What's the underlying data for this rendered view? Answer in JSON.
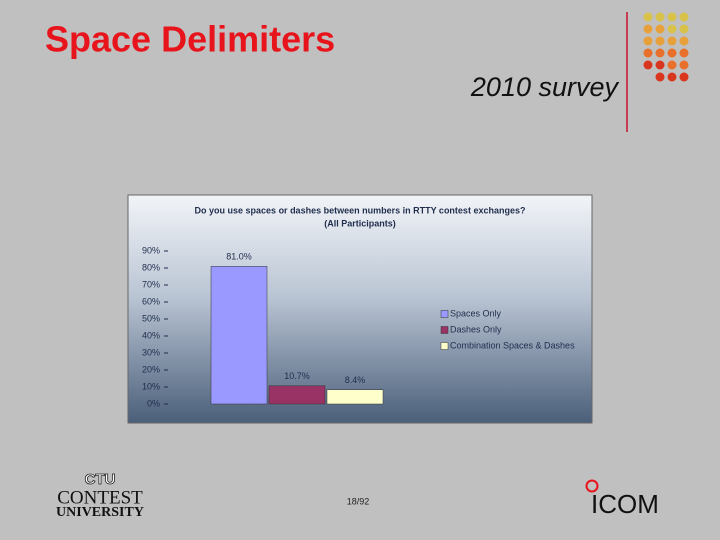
{
  "slide": {
    "title": "Space Delimiters",
    "subtitle": "2010 survey",
    "page": "18/92",
    "logo_left": [
      "CTU",
      "CONTEST",
      "UNIVERSITY"
    ],
    "logo_right": "ICOM"
  },
  "chart_data": {
    "type": "bar",
    "title": "Do you use spaces or dashes between numbers in RTTY contest exchanges?",
    "subtitle": "(All Participants)",
    "categories": [
      "Spaces Only",
      "Dashes Only",
      "Combination Spaces & Dashes"
    ],
    "values": [
      81.0,
      10.7,
      8.4
    ],
    "value_labels": [
      "81.0%",
      "10.7%",
      "8.4%"
    ],
    "colors": [
      "#9999ff",
      "#993366",
      "#ffffcc"
    ],
    "ylim": [
      0,
      90
    ],
    "yticks": [
      {
        "value": 0,
        "label": "0%"
      },
      {
        "value": 10,
        "label": "10%"
      },
      {
        "value": 20,
        "label": "20%"
      },
      {
        "value": 30,
        "label": "30%"
      },
      {
        "value": 40,
        "label": "40%"
      },
      {
        "value": 50,
        "label": "50%"
      },
      {
        "value": 60,
        "label": "60%"
      },
      {
        "value": 70,
        "label": "70%"
      },
      {
        "value": 80,
        "label": "80%"
      },
      {
        "value": 90,
        "label": "90%"
      }
    ],
    "legend": "right"
  }
}
